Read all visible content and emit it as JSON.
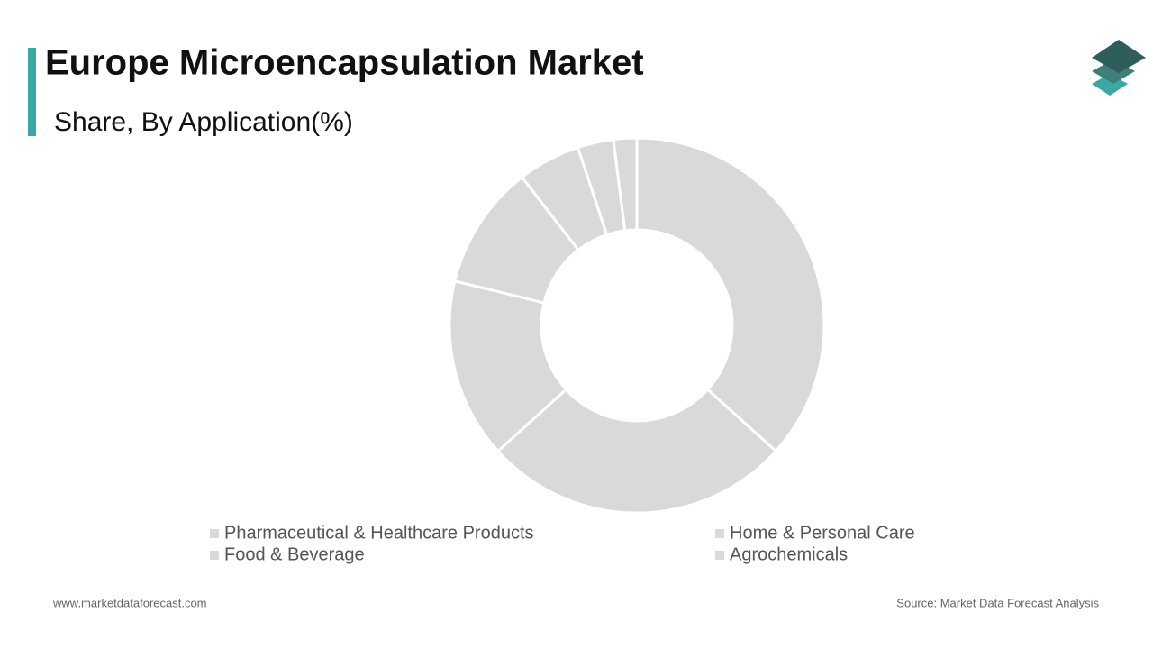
{
  "chart_data": {
    "type": "donut",
    "title": "Europe Microencapsulation Market",
    "subtitle": "Share, By Application(%)",
    "categories": [
      "Pharmaceutical & Healthcare Products",
      "Home & Personal Care",
      "Food & Beverage",
      "Agrochemicals",
      null,
      null,
      null
    ],
    "values": [
      36.7,
      26.6,
      15.5,
      10.7,
      5.4,
      3.1,
      2.0
    ],
    "color": "#d9d9d9",
    "website": "www.marketdataforecast.com",
    "source": "Source: Market Data Forecast Analysis"
  }
}
